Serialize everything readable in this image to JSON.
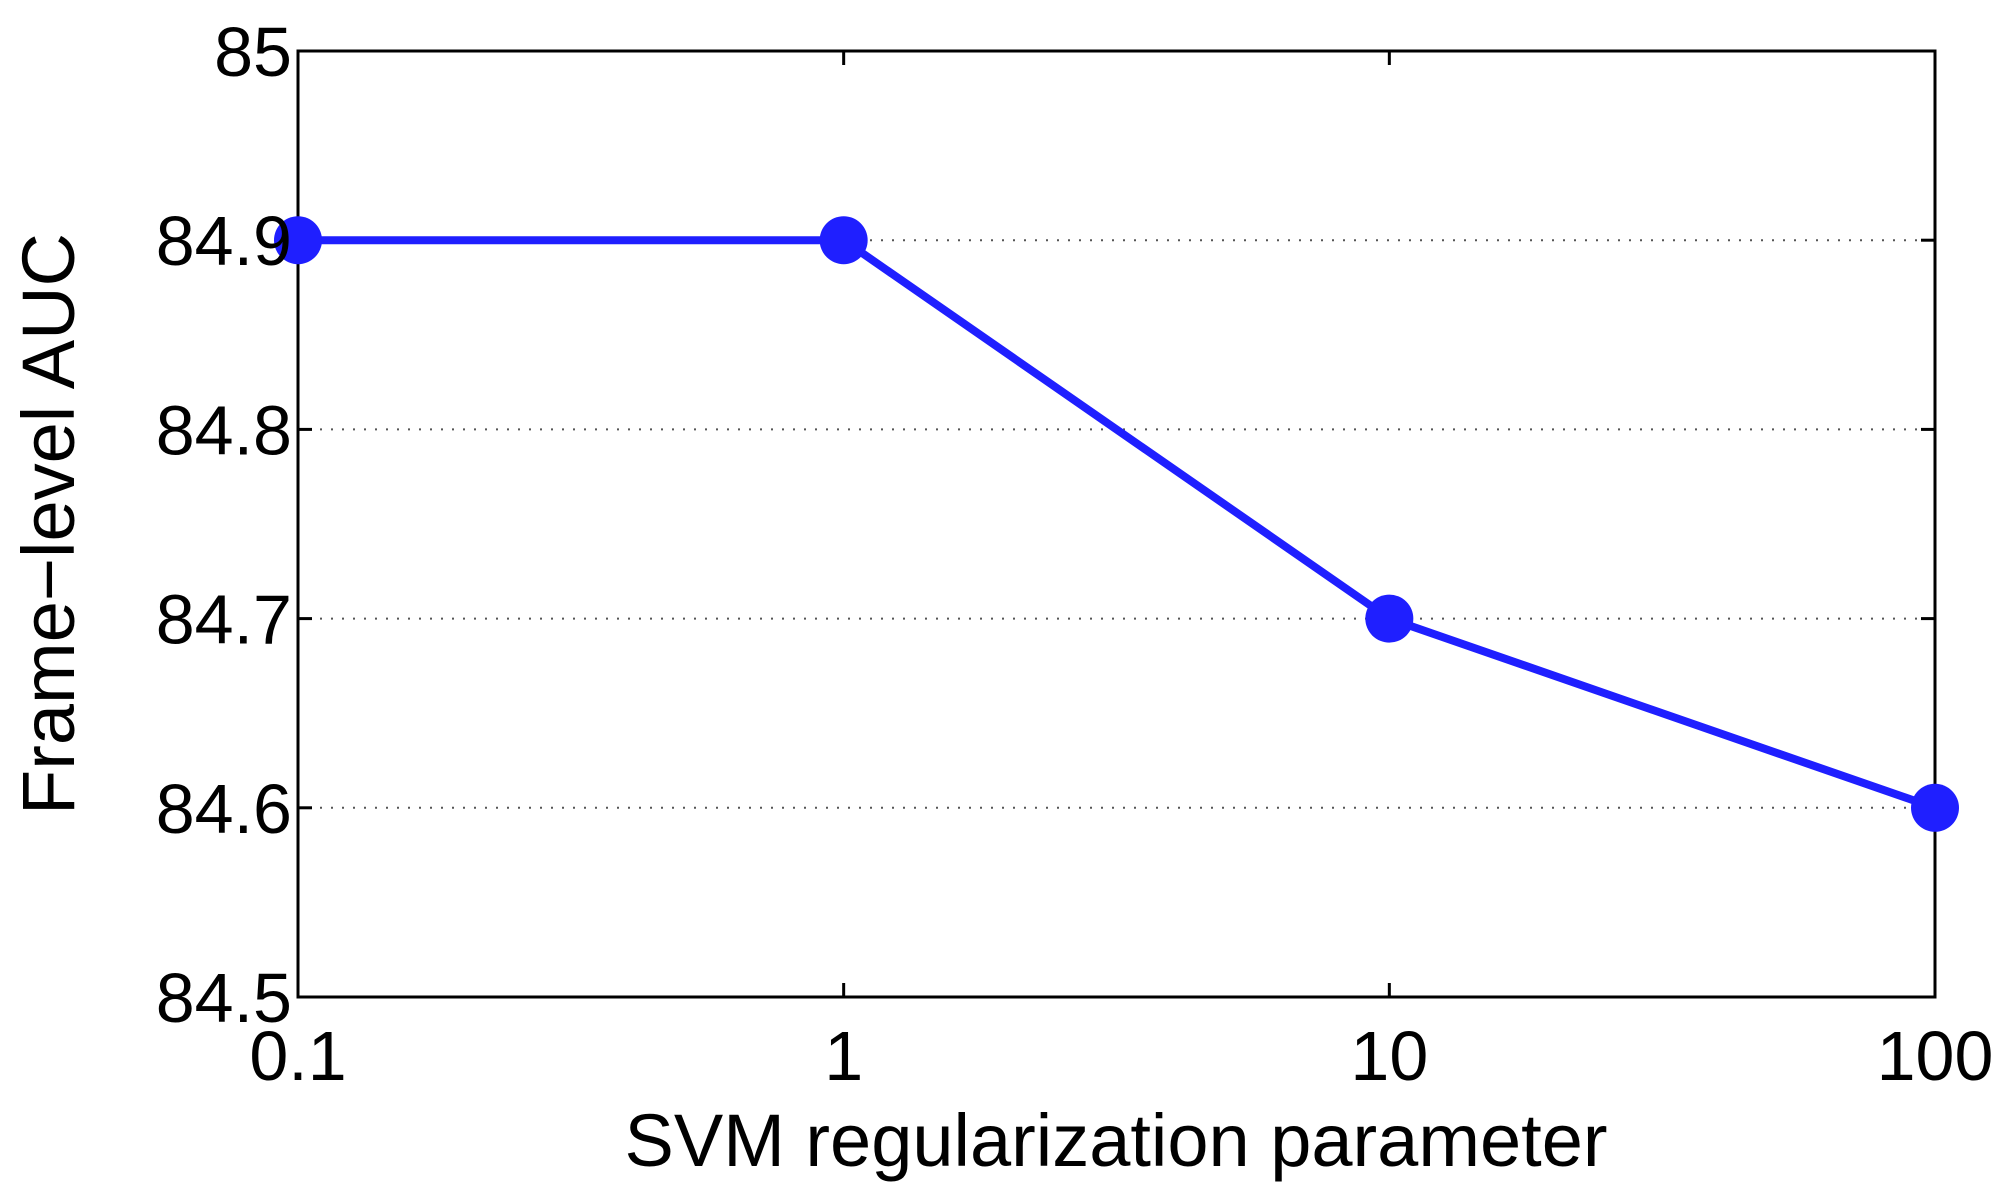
{
  "chart_data": {
    "type": "line",
    "x": [
      0.1,
      1,
      10,
      100
    ],
    "series": [
      {
        "values": [
          84.9,
          84.9,
          84.7,
          84.6
        ],
        "color": "#1f1fff"
      }
    ],
    "xlabel": "SVM regularization parameter",
    "ylabel": "Frame−level AUC",
    "xscale": "log",
    "xlim": [
      0.1,
      100
    ],
    "ylim": [
      84.5,
      85
    ],
    "xticks": [
      0.1,
      1,
      10,
      100
    ],
    "xtick_labels": [
      "0.1",
      "1",
      "10",
      "100"
    ],
    "yticks": [
      84.5,
      84.6,
      84.7,
      84.8,
      84.9,
      85
    ],
    "ytick_labels": [
      "84.5",
      "84.6",
      "84.7",
      "84.8",
      "84.9",
      "85"
    ],
    "grid": "y-dotted",
    "marker": "filled-circle"
  }
}
